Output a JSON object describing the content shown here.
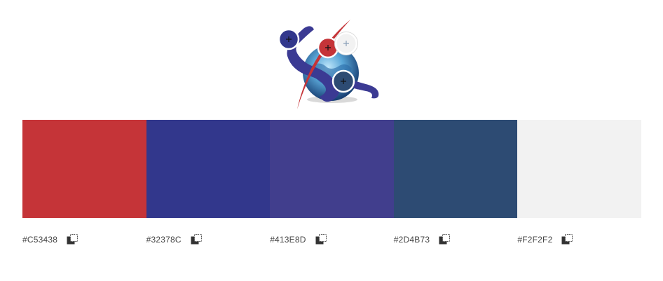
{
  "swatches": [
    {
      "hex": "#C53438",
      "color": "#C53438"
    },
    {
      "hex": "#32378C",
      "color": "#32378C"
    },
    {
      "hex": "#413E8D",
      "color": "#413E8D"
    },
    {
      "hex": "#2D4B73",
      "color": "#2D4B73"
    },
    {
      "hex": "#F2F2F2",
      "color": "#F2F2F2"
    }
  ],
  "icons": {
    "copy": "copy-icon",
    "picker": "color-picker-icon"
  },
  "logo": {
    "colors": {
      "figure": "#3B3A93",
      "swoosh": "#C53438",
      "globe_light": "#9FD3F0",
      "globe_dark": "#1F4E8C"
    }
  }
}
